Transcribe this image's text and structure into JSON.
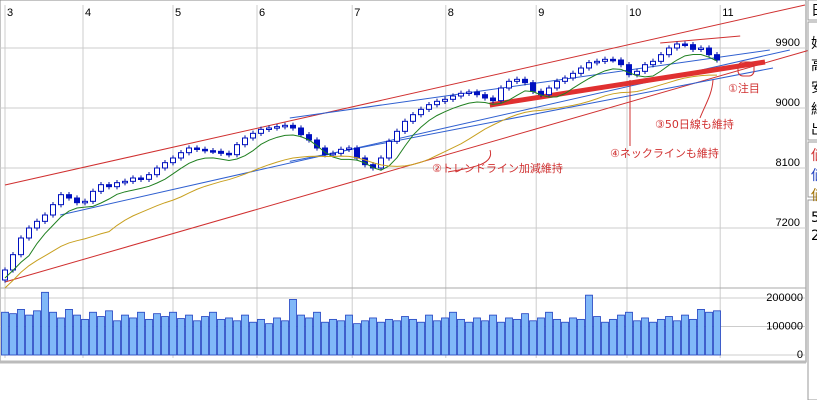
{
  "chart_data": {
    "type": "candlestick",
    "x_month_labels": [
      "3",
      "4",
      "5",
      "6",
      "7",
      "8",
      "9",
      "10",
      "11"
    ],
    "month_start_bar": [
      0,
      9.75,
      21,
      31.5,
      43.4,
      55.1,
      66.4,
      77.75,
      89.4
    ],
    "price_ticks": [
      9900,
      9000,
      8100,
      7200
    ],
    "price_range": [
      6345,
      10545
    ],
    "volume_ticks": [
      200000,
      100000,
      0
    ],
    "volume_range": [
      0,
      270000
    ],
    "grid": true,
    "closes": [
      6570,
      6800,
      7050,
      7200,
      7300,
      7395,
      7550,
      7700,
      7650,
      7580,
      7600,
      7750,
      7850,
      7820,
      7880,
      7900,
      7950,
      7930,
      8000,
      8100,
      8180,
      8250,
      8330,
      8400,
      8380,
      8360,
      8350,
      8320,
      8300,
      8450,
      8550,
      8620,
      8680,
      8700,
      8720,
      8740,
      8700,
      8600,
      8520,
      8400,
      8300,
      8320,
      8380,
      8400,
      8250,
      8150,
      8100,
      8250,
      8500,
      8650,
      8800,
      8900,
      8980,
      9050,
      9100,
      9130,
      9180,
      9220,
      9240,
      9200,
      9150,
      9110,
      9300,
      9400,
      9430,
      9380,
      9250,
      9200,
      9300,
      9400,
      9450,
      9520,
      9600,
      9680,
      9700,
      9730,
      9720,
      9650,
      9500,
      9550,
      9650,
      9700,
      9800,
      9900,
      9960,
      9950,
      9880,
      9900,
      9800,
      9720
    ],
    "volumes": [
      150000,
      145000,
      160000,
      140000,
      155000,
      220000,
      150000,
      130000,
      160000,
      140000,
      125000,
      150000,
      135000,
      155000,
      120000,
      140000,
      130000,
      150000,
      125000,
      145000,
      135000,
      150000,
      128000,
      140000,
      120000,
      135000,
      150000,
      125000,
      130000,
      120000,
      140000,
      115000,
      125000,
      110000,
      130000,
      120000,
      195000,
      140000,
      130000,
      150000,
      115000,
      125000,
      120000,
      140000,
      110000,
      120000,
      130000,
      115000,
      125000,
      120000,
      135000,
      125000,
      115000,
      140000,
      120000,
      130000,
      150000,
      125000,
      115000,
      130000,
      120000,
      140000,
      115000,
      130000,
      125000,
      145000,
      120000,
      130000,
      150000,
      125000,
      115000,
      130000,
      125000,
      210000,
      135000,
      115000,
      125000,
      140000,
      150000,
      120000,
      130000,
      115000,
      125000,
      135000,
      120000,
      140000,
      125000,
      160000,
      150000,
      155000
    ],
    "moving_average_colors": [
      "#208020",
      "#c8a020"
    ],
    "trendlines": [
      {
        "color": "#d03030",
        "width": 1,
        "from": [
          0,
          6390
        ],
        "to": [
          100.6,
          9870
        ]
      },
      {
        "color": "#d03030",
        "width": 1,
        "from": [
          0,
          7845
        ],
        "to": [
          100,
          10545
        ]
      },
      {
        "color": "#3060d0",
        "width": 1,
        "from": [
          6.9,
          7395
        ],
        "to": [
          98.1,
          9870
        ]
      },
      {
        "color": "#3060d0",
        "width": 1,
        "from": [
          35.6,
          8850
        ],
        "to": [
          95.6,
          9870
        ]
      },
      {
        "color": "#3060d0",
        "width": 1,
        "from": [
          35.6,
          8200
        ],
        "to": [
          96,
          9600
        ]
      },
      {
        "color": "#d03030",
        "width": 1,
        "from": [
          81.9,
          9975
        ],
        "to": [
          91.9,
          10080
        ]
      },
      {
        "color": "#e03030",
        "width": 5,
        "from": [
          60.6,
          9045
        ],
        "to": [
          95,
          9690
        ]
      }
    ],
    "annotations": [
      "①注目",
      "②トレンドライン加減維持",
      "③50日線も維持",
      "④ネックラインも維持"
    ]
  },
  "side_panel": {
    "chars": [
      "日",
      "始",
      "高",
      "安",
      "終",
      "出",
      "値",
      "値",
      "値",
      "5",
      "2"
    ],
    "colors": [
      "#000",
      "#000",
      "#000",
      "#000",
      "#000",
      "#000",
      "#d03030",
      "#2040c0",
      "#a07000",
      "#000",
      "#000"
    ]
  }
}
